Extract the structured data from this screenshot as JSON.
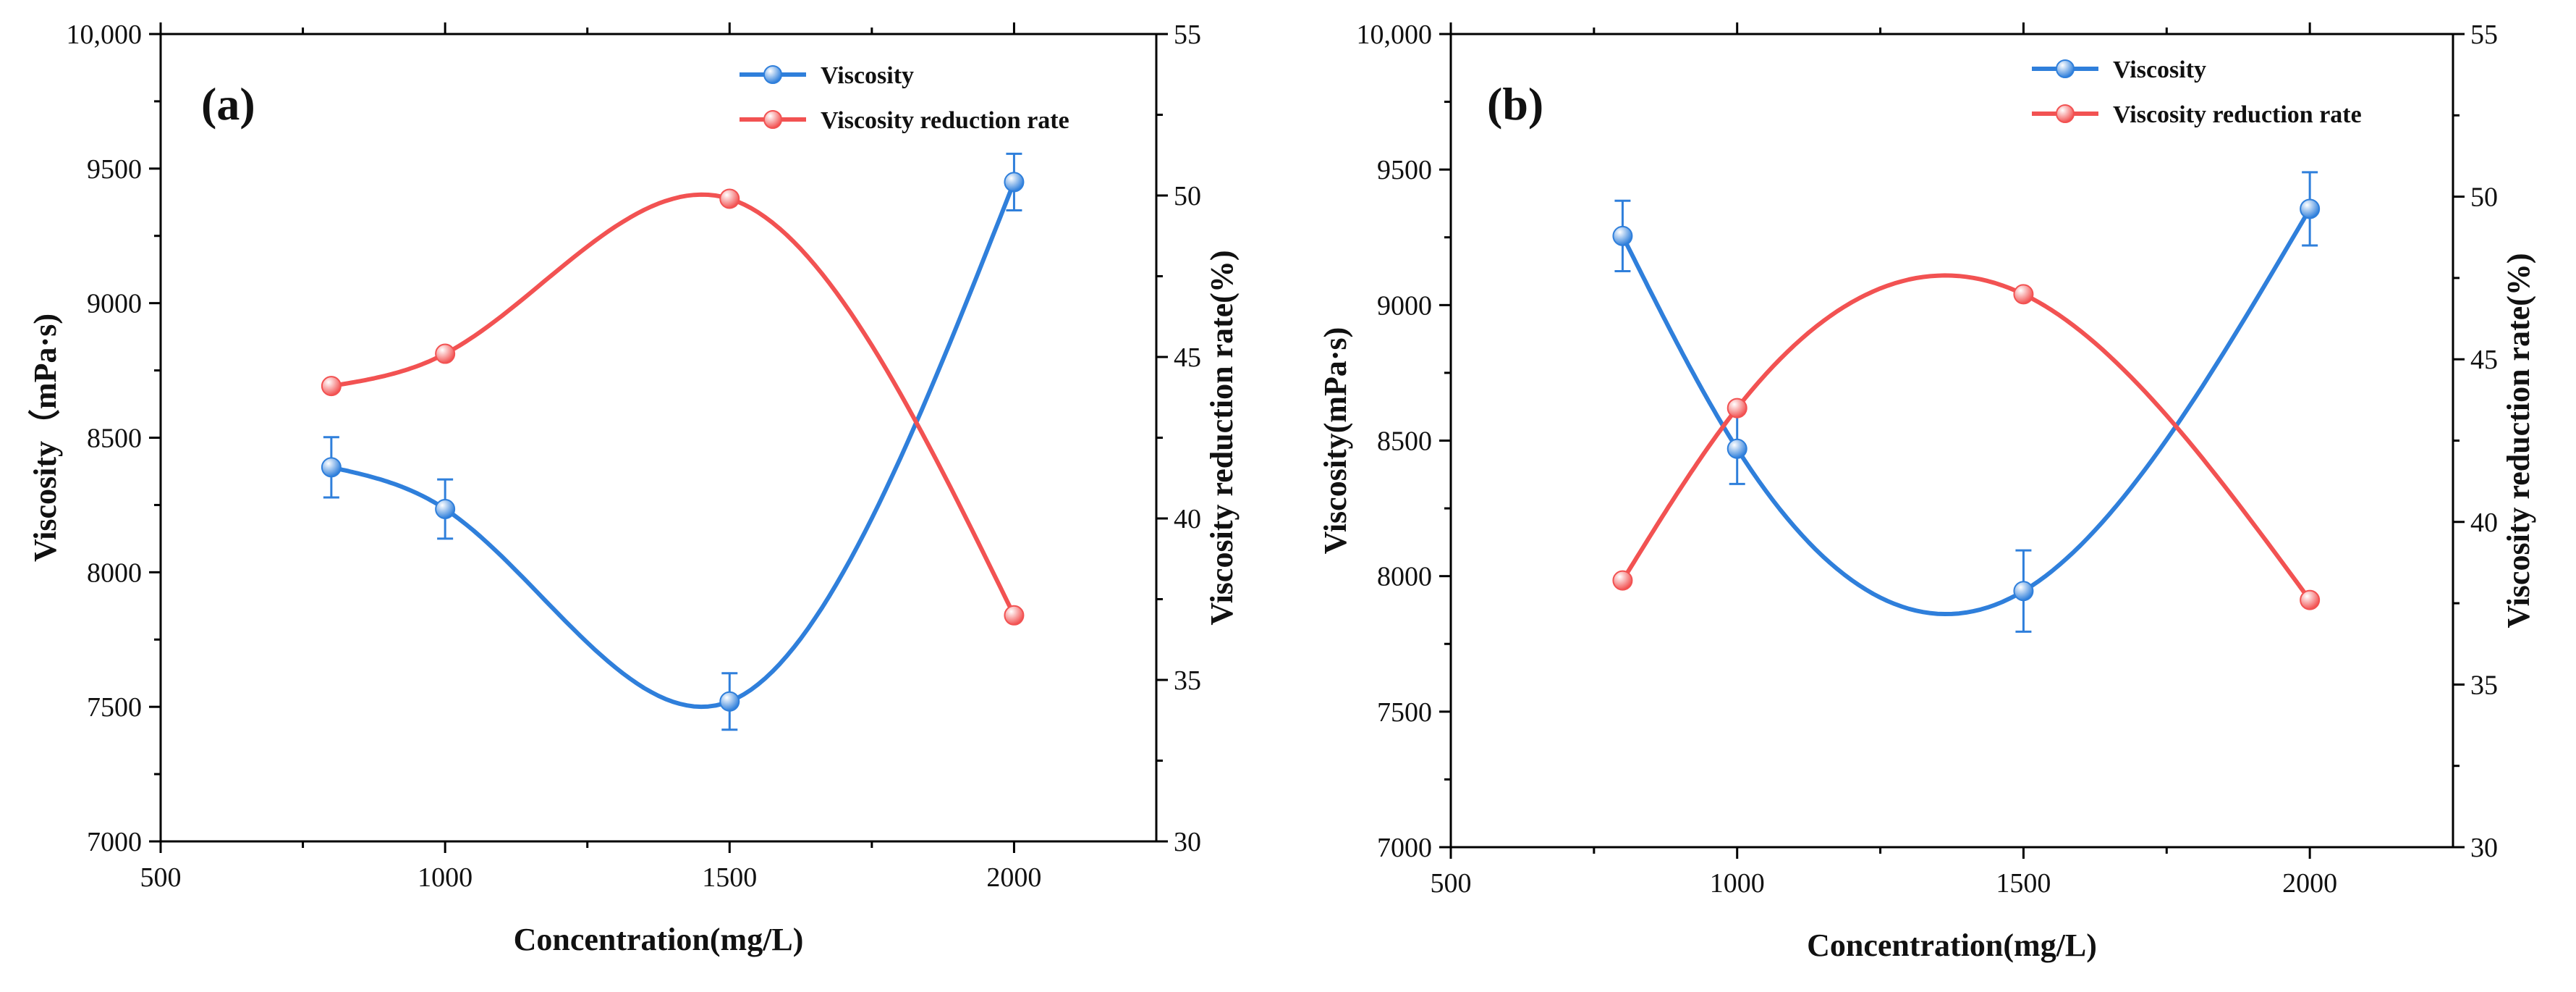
{
  "figure": {
    "colors": {
      "viscosity": "#2f7fdb",
      "reduction": "#f25252",
      "axis": "#000000"
    }
  },
  "chart_data": [
    {
      "type": "line",
      "panel_label": "(a)",
      "title": "",
      "xlabel": "Concentration(mg/L)",
      "ylabel_left": "Viscosity（mPa·s)",
      "ylabel_right": "Viscosity reduction rate(%)",
      "xlim": [
        500,
        2250
      ],
      "ylim_left": [
        7000,
        10000
      ],
      "ylim_right": [
        30,
        55
      ],
      "x_ticks": [
        500,
        1000,
        1500,
        2000
      ],
      "x_tick_labels": [
        "500",
        "1000",
        "1500",
        "2000"
      ],
      "y_left_ticks": [
        7000,
        7500,
        8000,
        8500,
        9000,
        9500,
        10000
      ],
      "y_left_tick_labels": [
        "7000",
        "7500",
        "8000",
        "8500",
        "9000",
        "9500",
        "10,000"
      ],
      "y_right_ticks": [
        30,
        35,
        40,
        45,
        50,
        55
      ],
      "y_right_tick_labels": [
        "30",
        "35",
        "40",
        "45",
        "50",
        "55"
      ],
      "legend": [
        "Viscosity",
        "Viscosity reduction rate"
      ],
      "legend_position": "top-right",
      "series": [
        {
          "name": "Viscosity",
          "axis": "left",
          "x": [
            800,
            1000,
            1500,
            2000
          ],
          "values": [
            8390,
            8235,
            7520,
            9450
          ],
          "errors": [
            112,
            110,
            105,
            105
          ]
        },
        {
          "name": "Viscosity reduction rate",
          "axis": "right",
          "x": [
            800,
            1000,
            1500,
            2000
          ],
          "values": [
            44.1,
            45.1,
            49.9,
            37.0
          ]
        }
      ]
    },
    {
      "type": "line",
      "panel_label": "(b)",
      "title": "",
      "xlabel": "Concentration(mg/L)",
      "ylabel_left": "Viscosity(mPa·s)",
      "ylabel_right": "Viscosity reduction rate(%)",
      "xlim": [
        500,
        2250
      ],
      "ylim_left": [
        7000,
        10000
      ],
      "ylim_right": [
        30,
        55
      ],
      "x_ticks": [
        500,
        1000,
        1500,
        2000
      ],
      "x_tick_labels": [
        "500",
        "1000",
        "1500",
        "2000"
      ],
      "y_left_ticks": [
        7000,
        7500,
        8000,
        8500,
        9000,
        9500,
        10000
      ],
      "y_left_tick_labels": [
        "7000",
        "7500",
        "8000",
        "8500",
        "9000",
        "9500",
        "10,000"
      ],
      "y_right_ticks": [
        30,
        35,
        40,
        45,
        50,
        55
      ],
      "y_right_tick_labels": [
        "30",
        "35",
        "40",
        "45",
        "50",
        "55"
      ],
      "legend": [
        "Viscosity",
        "Viscosity reduction rate"
      ],
      "legend_position": "top-right",
      "series": [
        {
          "name": "Viscosity",
          "axis": "left",
          "x": [
            800,
            1000,
            1500,
            2000
          ],
          "values": [
            9255,
            8470,
            7945,
            9355
          ],
          "errors": [
            130,
            130,
            150,
            135
          ]
        },
        {
          "name": "Viscosity reduction rate",
          "axis": "right",
          "x": [
            800,
            1000,
            1500,
            2000
          ],
          "values": [
            38.2,
            43.5,
            47.0,
            37.6
          ]
        }
      ]
    }
  ]
}
